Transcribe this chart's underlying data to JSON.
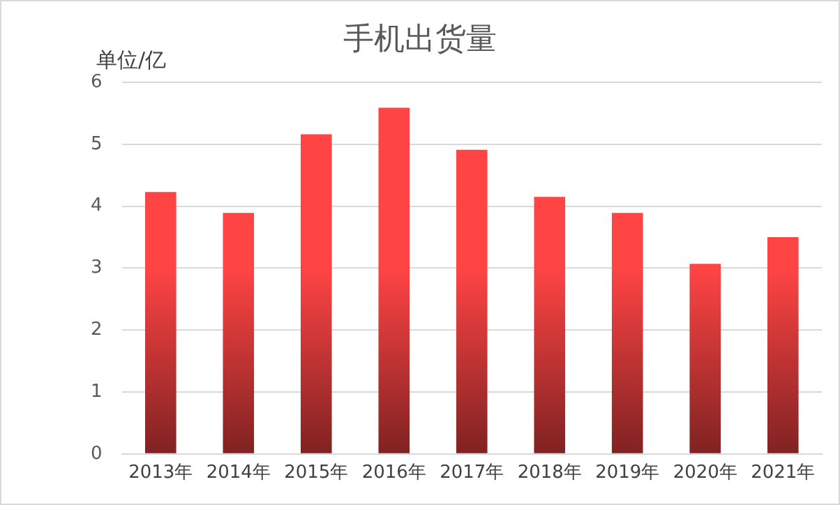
{
  "chart_data": {
    "type": "bar",
    "title": "手机出货量",
    "ylabel": "单位/亿",
    "categories": [
      "2013年",
      "2014年",
      "2015年",
      "2016年",
      "2017年",
      "2018年",
      "2019年",
      "2020年",
      "2021年"
    ],
    "values": [
      4.23,
      3.89,
      5.16,
      5.59,
      4.91,
      4.15,
      3.89,
      3.07,
      3.5
    ],
    "color": "#ff4444",
    "ylim": [
      0,
      6
    ],
    "yticks": [
      0,
      1,
      2,
      3,
      4,
      5,
      6
    ],
    "grid": "y",
    "legend": false
  }
}
